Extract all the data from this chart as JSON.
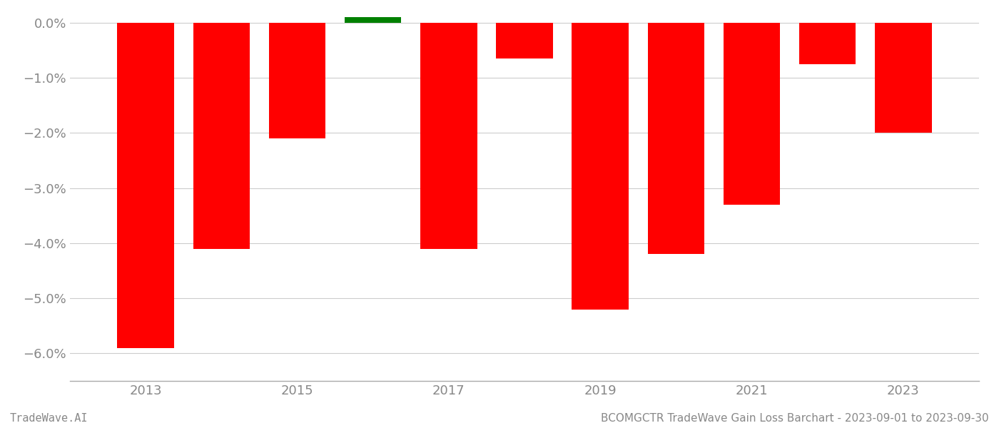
{
  "years": [
    2013,
    2014,
    2015,
    2016,
    2017,
    2018,
    2019,
    2020,
    2021,
    2022,
    2023
  ],
  "values": [
    -0.059,
    -0.041,
    -0.021,
    0.001,
    -0.041,
    -0.0065,
    -0.052,
    -0.042,
    -0.033,
    -0.0075,
    -0.02
  ],
  "bar_colors": [
    "#ff0000",
    "#ff0000",
    "#ff0000",
    "#008000",
    "#ff0000",
    "#ff0000",
    "#ff0000",
    "#ff0000",
    "#ff0000",
    "#ff0000",
    "#ff0000"
  ],
  "footer_left": "TradeWave.AI",
  "footer_right": "BCOMGCTR TradeWave Gain Loss Barchart - 2023-09-01 to 2023-09-30",
  "ylim": [
    -0.065,
    0.0018
  ],
  "yticks": [
    0.0,
    -0.01,
    -0.02,
    -0.03,
    -0.04,
    -0.05,
    -0.06
  ],
  "xticks": [
    2013,
    2015,
    2017,
    2019,
    2021,
    2023
  ],
  "background_color": "#ffffff",
  "grid_color": "#cccccc",
  "axis_label_color": "#888888",
  "footer_fontsize": 11,
  "tick_fontsize": 13,
  "bar_width": 0.75
}
